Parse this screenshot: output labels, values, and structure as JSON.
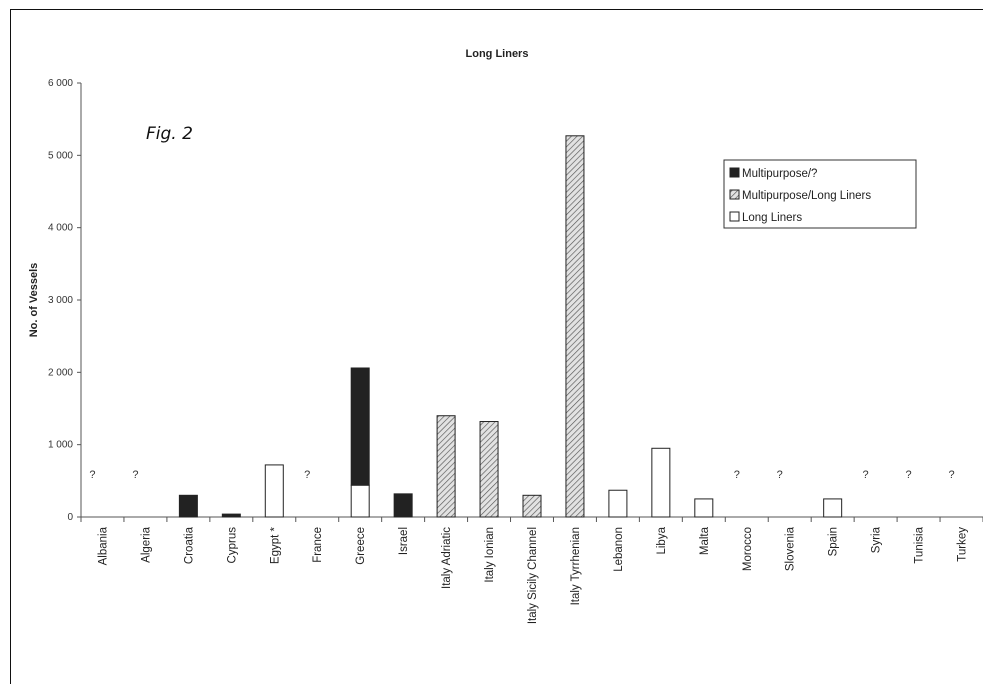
{
  "figure_label": "Fig. 2",
  "chart_data": {
    "type": "bar",
    "stacked": true,
    "title": "Long Liners",
    "xlabel": "",
    "ylabel": "No. of Vessels",
    "ylim": [
      0,
      6000
    ],
    "yticks": [
      0,
      1000,
      2000,
      3000,
      4000,
      5000,
      6000
    ],
    "ytick_labels": [
      "0",
      "1 000",
      "2 000",
      "3 000",
      "4 000",
      "5 000",
      "6 000"
    ],
    "grid": false,
    "legend_position": "top-right",
    "categories": [
      "Albania",
      "Algeria",
      "Croatia",
      "Cyprus",
      "Egypt *",
      "France",
      "Greece",
      "Israel",
      "Italy Adriatic",
      "Italy Ionian",
      "Italy Sicily Channel",
      "Italy Tyrrhenian",
      "Lebanon",
      "Libya",
      "Malta",
      "Morocco",
      "Slovenia",
      "Spain",
      "Syria",
      "Tunisia",
      "Turkey"
    ],
    "series": [
      {
        "name": "Long Liners",
        "style": "white",
        "values": [
          0,
          0,
          0,
          0,
          720,
          0,
          440,
          0,
          0,
          0,
          0,
          0,
          370,
          950,
          250,
          0,
          0,
          250,
          0,
          0,
          0
        ]
      },
      {
        "name": "Multipurpose/Long Liners",
        "style": "hatched",
        "values": [
          0,
          0,
          0,
          0,
          0,
          0,
          0,
          0,
          1400,
          1320,
          300,
          5270,
          0,
          0,
          0,
          0,
          0,
          0,
          0,
          0,
          0
        ]
      },
      {
        "name": "Multipurpose/?",
        "style": "black",
        "values": [
          0,
          0,
          300,
          40,
          0,
          0,
          1620,
          320,
          0,
          0,
          0,
          0,
          0,
          0,
          0,
          0,
          0,
          0,
          0,
          0,
          0
        ]
      }
    ],
    "annotations": [
      {
        "category": "Albania",
        "text": "?"
      },
      {
        "category": "Algeria",
        "text": "?"
      },
      {
        "category": "France",
        "text": "?"
      },
      {
        "category": "Morocco",
        "text": "?"
      },
      {
        "category": "Slovenia",
        "text": "?"
      },
      {
        "category": "Syria",
        "text": "?"
      },
      {
        "category": "Tunisia",
        "text": "?"
      },
      {
        "category": "Turkey",
        "text": "?"
      }
    ],
    "legend_order": [
      "Multipurpose/?",
      "Multipurpose/Long Liners",
      "Long Liners"
    ]
  }
}
